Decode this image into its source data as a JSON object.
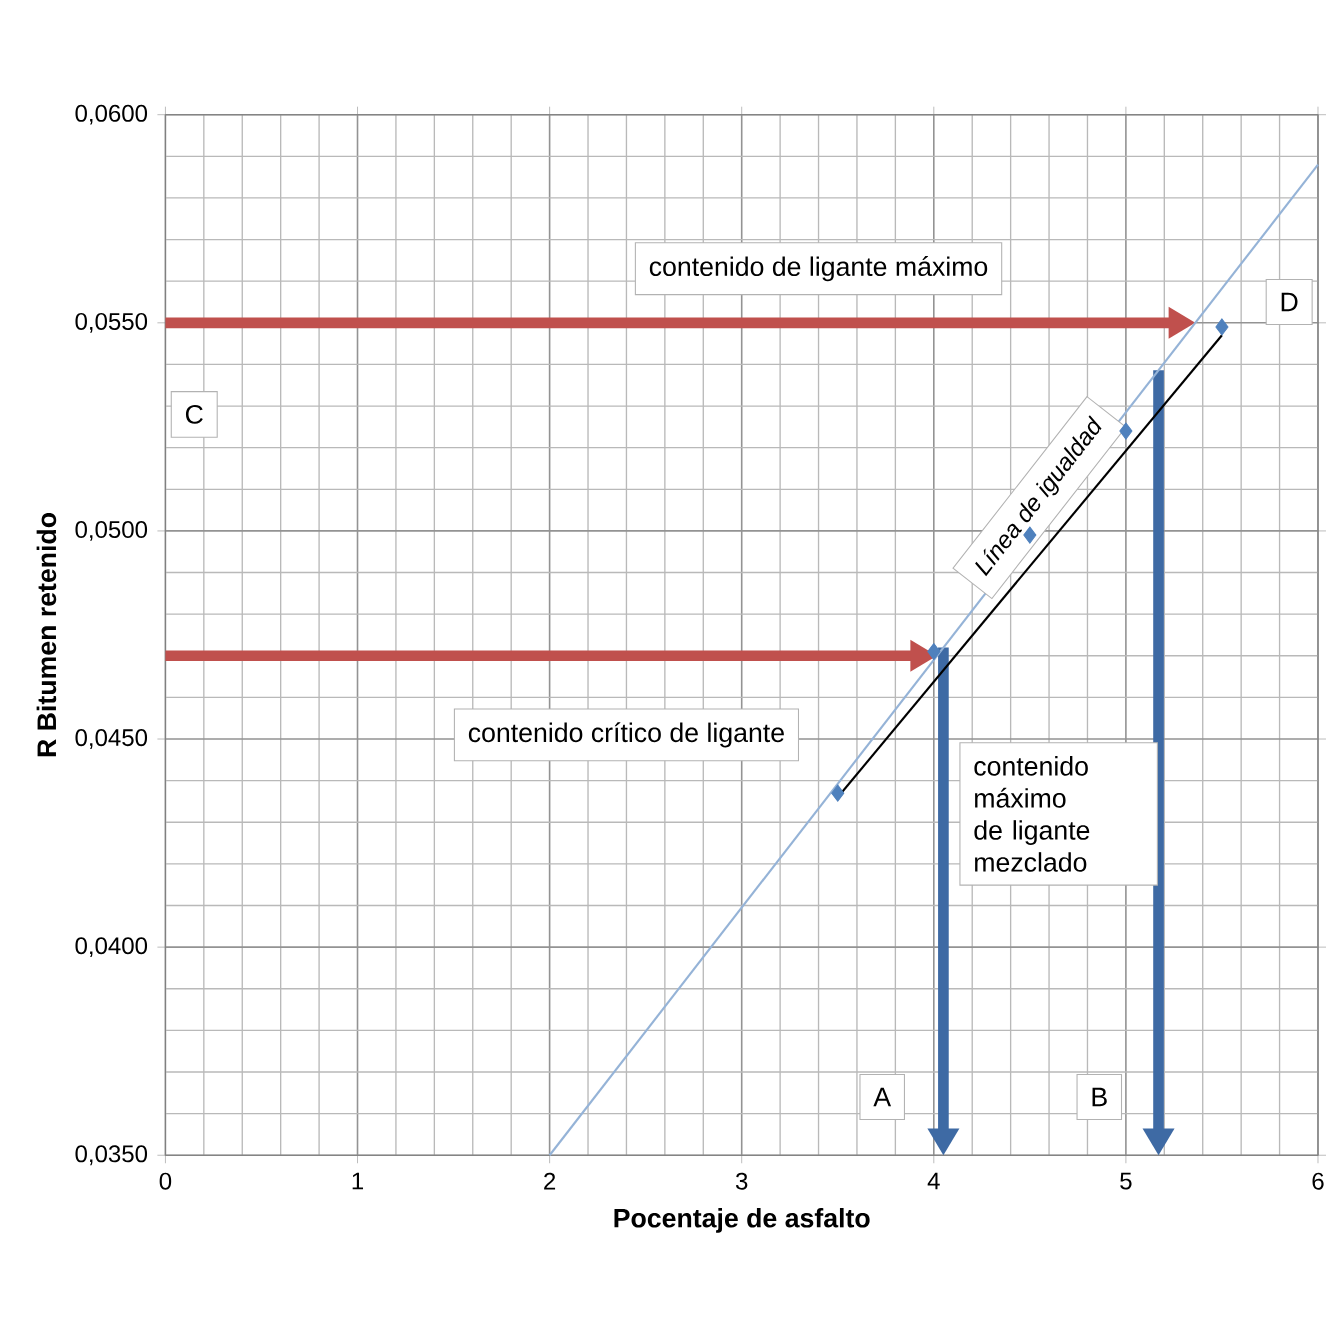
{
  "chart_data": {
    "type": "scatter",
    "xlabel": "Pocentaje de asfalto",
    "ylabel": "R Bitumen retenido",
    "xlim": [
      0,
      6
    ],
    "ylim": [
      0.035,
      0.06
    ],
    "xticks": [
      0,
      1,
      2,
      3,
      4,
      5,
      6
    ],
    "yticks": [
      {
        "value": 0.035,
        "label": "0,0350"
      },
      {
        "value": 0.04,
        "label": "0,0400"
      },
      {
        "value": 0.045,
        "label": "0,0450"
      },
      {
        "value": 0.05,
        "label": "0,0500"
      },
      {
        "value": 0.055,
        "label": "0,0550"
      },
      {
        "value": 0.06,
        "label": "0,0600"
      }
    ],
    "grid": true,
    "series": [
      {
        "type": "line",
        "color": "#95b3d7",
        "x": [
          2,
          4,
          6
        ],
        "values": [
          0.035,
          0.0469,
          0.0588
        ]
      },
      {
        "type": "line",
        "color": "#000000",
        "x": [
          3.5,
          5.5
        ],
        "values": [
          0.0436,
          0.0547
        ]
      },
      {
        "color": "#4f81bd",
        "marker": "diamond",
        "x": [
          3.5,
          4.0,
          4.5,
          5.0,
          5.5
        ],
        "values": [
          0.0437,
          0.0471,
          0.0499,
          0.0524,
          0.0549
        ]
      }
    ],
    "ref_lines": [
      {
        "axis": "y",
        "value": 0.055,
        "label": "contenido de ligante máximo",
        "color": "#c0504d"
      },
      {
        "axis": "y",
        "value": 0.047,
        "label": "contenido crítico de ligante",
        "color": "#c0504d"
      },
      {
        "axis": "x",
        "value": 4.05,
        "label": "A",
        "color": "#3e6aa4"
      },
      {
        "axis": "x",
        "value": 5.17,
        "label": "B",
        "color": "#3e6aa4"
      }
    ],
    "annotations": [
      "C",
      "D",
      "Línea de igualdad",
      "contenido máximo de ligante mezclado"
    ]
  }
}
